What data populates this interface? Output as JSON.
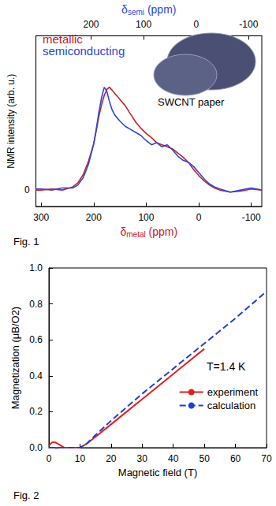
{
  "chart_data": [
    {
      "type": "line",
      "title": "Fig. 1",
      "xlabel": "δmetal (ppm)",
      "x2label": "δsemi (ppm)",
      "ylabel": "NMR intensity (arb. u.)",
      "xlim": [
        310,
        -120
      ],
      "xticks": [
        300,
        200,
        100,
        0,
        -100
      ],
      "x2lim": [
        305,
        -125
      ],
      "x2ticks": [
        200,
        100,
        0,
        -100
      ],
      "ylim": [
        -0.16,
        1.5
      ],
      "yticks": [
        0
      ],
      "grid": false,
      "legend": "upper left",
      "marker": "none",
      "annotations": [
        "SWCNT paper"
      ],
      "x": [
        310,
        300,
        280,
        260,
        240,
        230,
        220,
        210,
        200,
        195,
        190,
        185,
        180,
        175,
        170,
        165,
        160,
        150,
        140,
        130,
        120,
        110,
        100,
        90,
        80,
        70,
        60,
        50,
        40,
        30,
        20,
        10,
        0,
        -10,
        -20,
        -30,
        -40,
        -60,
        -80,
        -100,
        -120
      ],
      "series": [
        {
          "name": "metallic",
          "color": "#c8202a",
          "line_style": "solid",
          "values": [
            0,
            0,
            0.01,
            0,
            0.03,
            0.07,
            0.15,
            0.28,
            0.45,
            0.58,
            0.72,
            0.83,
            0.92,
            0.98,
            1.0,
            0.97,
            0.94,
            0.88,
            0.82,
            0.74,
            0.66,
            0.6,
            0.55,
            0.51,
            0.46,
            0.44,
            0.42,
            0.4,
            0.36,
            0.32,
            0.27,
            0.2,
            0.14,
            0.09,
            0.05,
            0.02,
            0.0,
            -0.02,
            -0.01,
            0.01,
            0.0
          ]
        },
        {
          "name": "semiconducting",
          "color": "#2a48d8",
          "line_style": "solid",
          "values": [
            0.01,
            0.01,
            0,
            0.02,
            0.02,
            0.05,
            0.12,
            0.25,
            0.45,
            0.6,
            0.76,
            0.9,
            1.0,
            0.96,
            0.86,
            0.78,
            0.73,
            0.67,
            0.62,
            0.59,
            0.56,
            0.53,
            0.48,
            0.44,
            0.46,
            0.42,
            0.44,
            0.39,
            0.33,
            0.29,
            0.27,
            0.23,
            0.17,
            0.11,
            0.06,
            0.03,
            0.01,
            -0.02,
            0.0,
            0.02,
            0.0
          ]
        }
      ]
    },
    {
      "type": "line",
      "title": "Fig. 2",
      "xlabel": "Magnetic field (T)",
      "ylabel": "Magnetization (μB/O2)",
      "xlim": [
        0,
        70
      ],
      "xticks": [
        0,
        10,
        20,
        30,
        40,
        50,
        60,
        70
      ],
      "ylim": [
        0,
        1
      ],
      "yticks": [
        {
          "value": 0,
          "label": "0.0"
        },
        0.2,
        0.4,
        0.6,
        0.8,
        {
          "value": 1,
          "label": "1.0"
        }
      ],
      "grid": false,
      "legend": "lower right",
      "marker": "none",
      "annotations": [
        "T=1.4 K"
      ],
      "series": [
        {
          "name": "experiment",
          "color": "#e02020",
          "line_style": "solid",
          "x": [
            0,
            1,
            2,
            3,
            4,
            5,
            6,
            8,
            10,
            12,
            15,
            20,
            25,
            30,
            35,
            40,
            45,
            50
          ],
          "values": [
            0.01,
            0.03,
            0.03,
            0.02,
            0.01,
            0.0,
            0.0,
            0.0,
            0.0,
            0.02,
            0.06,
            0.13,
            0.2,
            0.27,
            0.34,
            0.41,
            0.48,
            0.55
          ]
        },
        {
          "name": "calculation",
          "color": "#1f3fd6",
          "line_style": "dashed",
          "x": [
            0,
            10,
            12,
            15,
            20,
            30,
            40,
            50,
            60,
            70
          ],
          "values": [
            0,
            0,
            0.02,
            0.07,
            0.15,
            0.3,
            0.44,
            0.58,
            0.72,
            0.87
          ]
        }
      ]
    }
  ]
}
